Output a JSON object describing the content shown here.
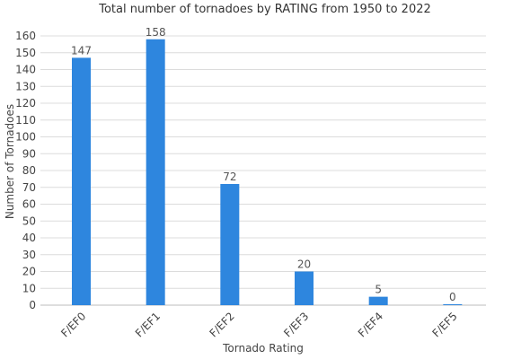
{
  "chart_data": {
    "type": "bar",
    "title": "Total number of tornadoes by RATING from 1950 to 2022",
    "xlabel": "Tornado Rating",
    "ylabel": "Number of Tornadoes",
    "categories": [
      "F/EF0",
      "F/EF1",
      "F/EF2",
      "F/EF3",
      "F/EF4",
      "F/EF5"
    ],
    "values": [
      147,
      158,
      72,
      20,
      5,
      0
    ],
    "data_labels": [
      "147",
      "158",
      "72",
      "20",
      "5",
      "0"
    ],
    "ylim": [
      0,
      160
    ],
    "yticks": [
      0,
      10,
      20,
      30,
      40,
      50,
      60,
      70,
      80,
      90,
      100,
      110,
      120,
      130,
      140,
      150,
      160
    ],
    "bar_color": "#2e86de",
    "grid": true,
    "legend": "none"
  }
}
